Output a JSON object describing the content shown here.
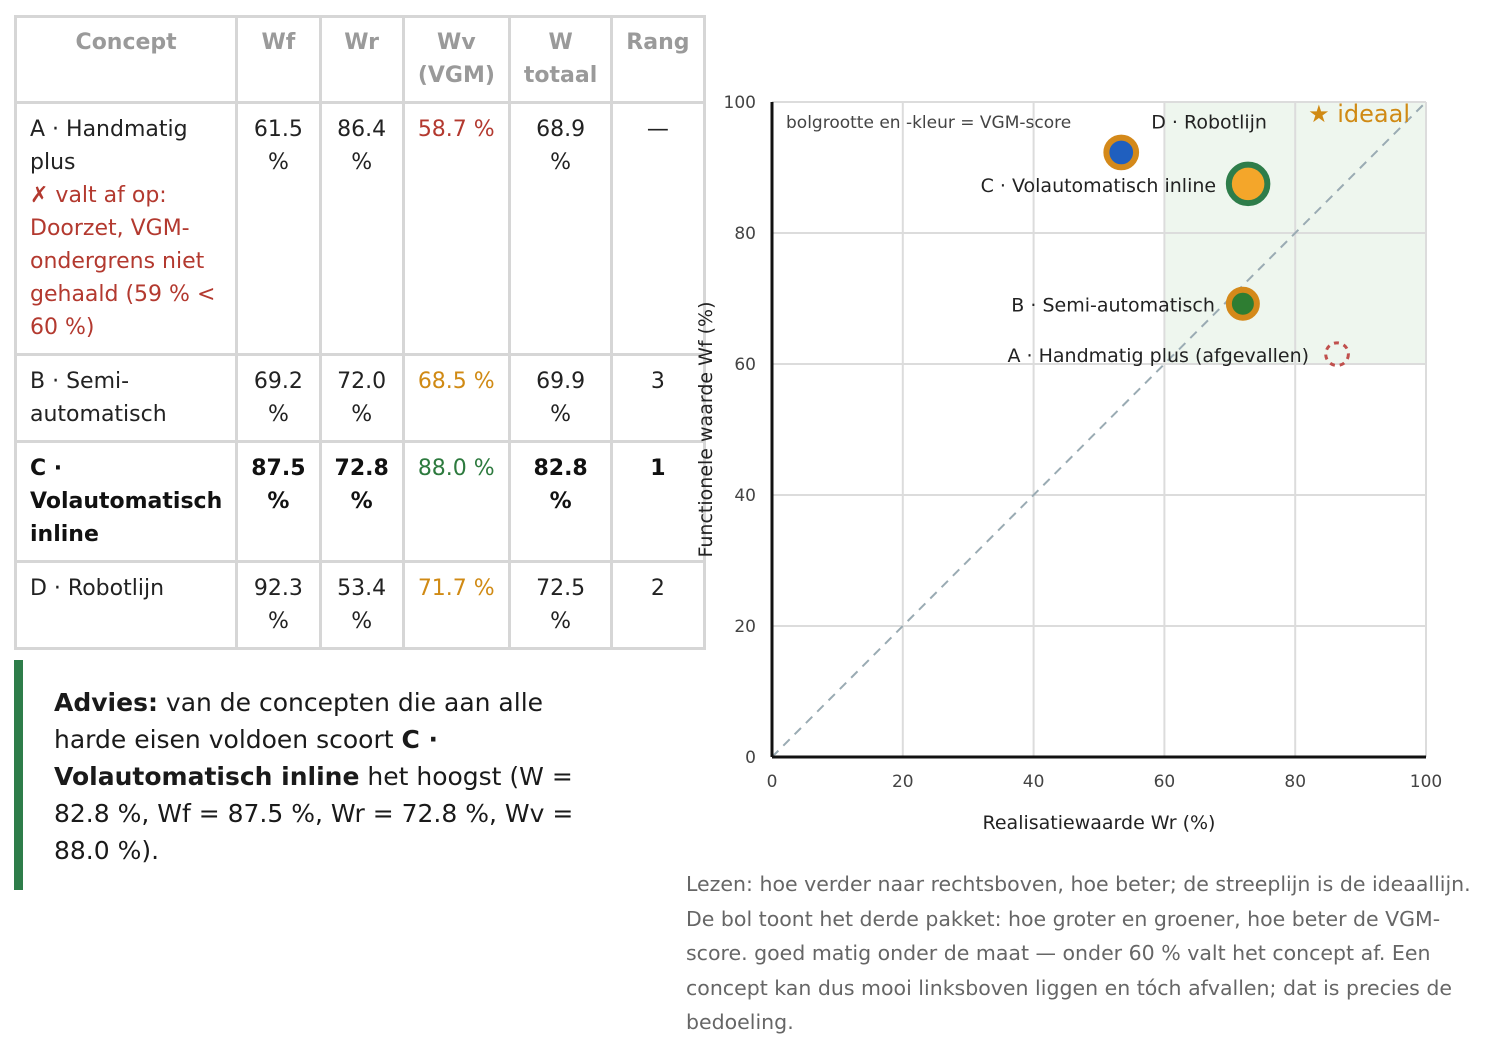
{
  "table": {
    "headers": [
      "Concept",
      "Wf",
      "Wr",
      "Wv\n(VGM)",
      "W\ntotaal",
      "Rang"
    ],
    "rows": [
      {
        "concept": "A · Handmatig plus",
        "note": "✗ valt af op: Doorzet, VGM-ondergrens niet gehaald (59 % < 60 %)",
        "wf": "61.5 %",
        "wr": "86.4 %",
        "wv": "58.7 %",
        "wv_color": "#b3392f",
        "w": "68.9 %",
        "rang": "—"
      },
      {
        "concept": "B · Semi-automatisch",
        "note": "",
        "wf": "69.2 %",
        "wr": "72.0 %",
        "wv": "68.5 %",
        "wv_color": "#d08a14",
        "w": "69.9 %",
        "rang": "3"
      },
      {
        "concept": "C · Volautomatisch inline",
        "note": "",
        "wf": "87.5 %",
        "wr": "72.8 %",
        "wv": "88.0 %",
        "wv_color": "#2d7a3e",
        "w": "82.8 %",
        "rang": "1"
      },
      {
        "concept": "D · Robotlijn",
        "note": "",
        "wf": "92.3 %",
        "wr": "53.4 %",
        "wv": "71.7 %",
        "wv_color": "#d08a14",
        "w": "72.5 %",
        "rang": "2"
      }
    ]
  },
  "advice": {
    "lead": "Advies:",
    "text1": " van de concepten die aan alle harde eisen voldoen scoort ",
    "winner": "C · Volautomatisch inline",
    "text2": " het hoogst (W = 82.8 %, Wf = 87.5 %, Wr = 72.8 %, Wv = 88.0 %)."
  },
  "chart_data": {
    "type": "scatter",
    "xlabel": "Realisatiewaarde Wr (%)",
    "ylabel": "Functionele waarde Wf (%)",
    "xlim": [
      0,
      100
    ],
    "ylim": [
      0,
      100
    ],
    "xticks": [
      0,
      20,
      40,
      60,
      80,
      100
    ],
    "yticks": [
      0,
      20,
      40,
      60,
      80,
      100
    ],
    "grid": true,
    "size_note": "bolgrootte en -kleur = VGM-score",
    "ideal_label": "★ ideaal",
    "ideal_region": {
      "x": [
        60,
        100
      ],
      "y": [
        60,
        100
      ]
    },
    "diagonal": {
      "from": [
        0,
        0
      ],
      "to": [
        100,
        100
      ]
    },
    "points": [
      {
        "label": "A · Handmatig plus (afgevallen)",
        "x": 86.4,
        "y": 61.5,
        "vgm": 58.7,
        "fill": "none",
        "ring": "#c0504d",
        "dropped": true,
        "label_color": "#a0453b"
      },
      {
        "label": "B · Semi-automatisch",
        "x": 72.0,
        "y": 69.2,
        "vgm": 68.5,
        "fill": "#2e7d32",
        "ring": "#d4891a"
      },
      {
        "label": "C · Volautomatisch inline",
        "x": 72.8,
        "y": 87.5,
        "vgm": 88.0,
        "fill": "#f4a62a",
        "ring": "#2e7d4a"
      },
      {
        "label": "D · Robotlijn",
        "x": 53.4,
        "y": 92.3,
        "vgm": 71.7,
        "fill": "#1f5fbf",
        "ring": "#d4891a"
      }
    ]
  },
  "caption": "Lezen: hoe verder naar rechtsboven, hoe beter; de streeplijn is de ideaallijn. De bol toont het derde pakket: hoe groter en groener, hoe beter de VGM-score. goed matig onder de maat — onder 60 % valt het concept af. Een concept kan dus mooi linksboven liggen en tóch afvallen; dat is precies de bedoeling."
}
